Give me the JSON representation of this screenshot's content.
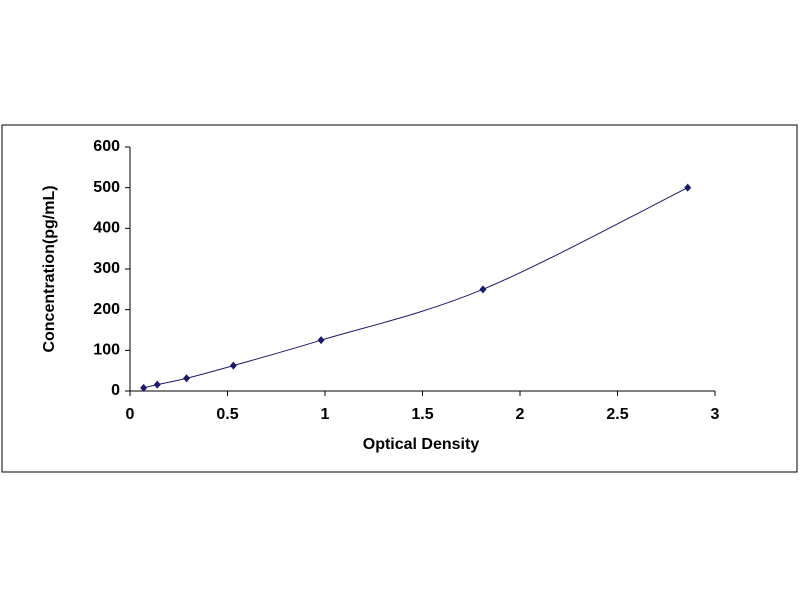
{
  "chart_data": {
    "type": "scatter",
    "x_label": "Optical Density",
    "y_label": "Concentration(pg/mL)",
    "x": [
      0.07,
      0.14,
      0.29,
      0.53,
      0.98,
      1.81,
      2.86
    ],
    "series": [
      {
        "color": "#1a1a6e",
        "values": [
          7.8,
          15.6,
          31.25,
          62.5,
          125,
          250,
          500
        ]
      }
    ],
    "xlim": [
      0,
      3
    ],
    "xticks": [
      0,
      0.5,
      1,
      1.5,
      2,
      2.5,
      3
    ],
    "ylim": [
      0,
      600
    ],
    "yticks": [
      0,
      100,
      200,
      300,
      400,
      500,
      600
    ],
    "grid": false
  }
}
